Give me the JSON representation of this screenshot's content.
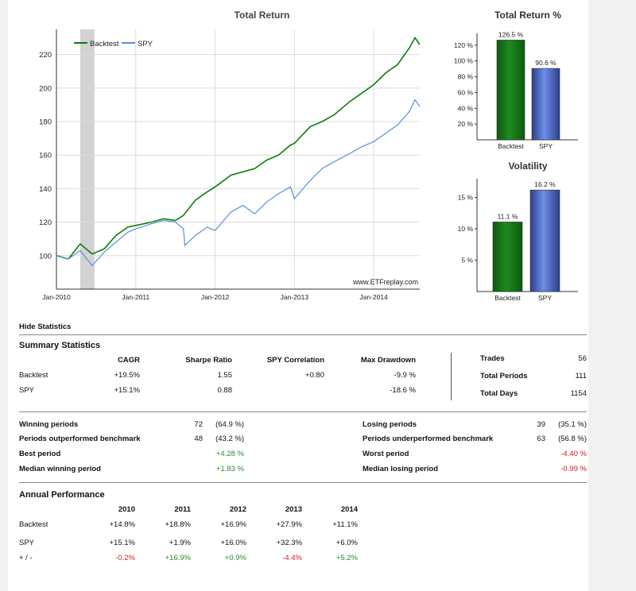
{
  "chart_data": [
    {
      "type": "line",
      "title": "Total Return",
      "x_ticks": [
        "Jan-2010",
        "Jan-2011",
        "Jan-2012",
        "Jan-2013",
        "Jan-2014"
      ],
      "y_ticks": [
        100,
        120,
        140,
        160,
        180,
        200,
        220
      ],
      "ylim": [
        80,
        235
      ],
      "xlim": [
        2010.0,
        2014.58
      ],
      "grid": true,
      "legend": "top-left",
      "watermark": "www.ETFreplay.com",
      "shaded_region": [
        2010.3,
        2010.48
      ],
      "series": [
        {
          "name": "Backtest",
          "color": "#0a7d0a",
          "x": [
            2010.0,
            2010.15,
            2010.3,
            2010.45,
            2010.6,
            2010.75,
            2010.9,
            2011.0,
            2011.2,
            2011.35,
            2011.5,
            2011.6,
            2011.75,
            2011.9,
            2012.0,
            2012.2,
            2012.35,
            2012.5,
            2012.65,
            2012.8,
            2012.95,
            2013.0,
            2013.2,
            2013.35,
            2013.5,
            2013.7,
            2013.85,
            2014.0,
            2014.15,
            2014.3,
            2014.45,
            2014.52,
            2014.58
          ],
          "values": [
            100,
            98,
            107,
            101,
            104,
            112,
            117,
            118,
            120,
            122,
            121,
            124,
            133,
            138,
            141,
            148,
            150,
            152,
            157,
            160,
            166,
            167,
            177,
            180,
            184,
            192,
            197,
            202,
            209,
            214,
            224,
            230,
            226
          ]
        },
        {
          "name": "SPY",
          "color": "#5b8fd6",
          "x": [
            2010.0,
            2010.15,
            2010.3,
            2010.45,
            2010.6,
            2010.75,
            2010.9,
            2011.0,
            2011.2,
            2011.35,
            2011.5,
            2011.6,
            2011.62,
            2011.75,
            2011.9,
            2012.0,
            2012.2,
            2012.35,
            2012.5,
            2012.65,
            2012.8,
            2012.95,
            2013.0,
            2013.2,
            2013.35,
            2013.5,
            2013.7,
            2013.85,
            2014.0,
            2014.15,
            2014.3,
            2014.45,
            2014.52,
            2014.58
          ],
          "values": [
            100,
            98,
            103,
            94,
            102,
            108,
            114,
            116,
            119,
            121,
            120,
            116,
            106,
            112,
            117,
            115,
            126,
            130,
            125,
            132,
            137,
            141,
            134,
            145,
            152,
            156,
            161,
            165,
            168,
            173,
            178,
            186,
            193,
            189
          ]
        }
      ]
    },
    {
      "type": "bar",
      "title": "Total Return %",
      "categories": [
        "Backtest",
        "SPY"
      ],
      "values": [
        126.5,
        90.6
      ],
      "labels": [
        "126.5 %",
        "90.6 %"
      ],
      "colors": [
        "#1e8a1e",
        "#6e8fe8"
      ],
      "y_ticks": [
        "20 %",
        "40 %",
        "60 %",
        "80 %",
        "100 %",
        "120 %"
      ],
      "y_tick_values": [
        20,
        40,
        60,
        80,
        100,
        120
      ],
      "ylim": [
        0,
        135
      ]
    },
    {
      "type": "bar",
      "title": "Volatility",
      "categories": [
        "Backtest",
        "SPY"
      ],
      "values": [
        11.1,
        16.2
      ],
      "labels": [
        "11.1 %",
        "16.2 %"
      ],
      "colors": [
        "#1e8a1e",
        "#6e8fe8"
      ],
      "y_ticks": [
        "5 %",
        "10 %",
        "15 %"
      ],
      "y_tick_values": [
        5,
        10,
        15
      ],
      "ylim": [
        0,
        18
      ]
    }
  ],
  "hide_stats_link": "Hide Statistics",
  "summary": {
    "title": "Summary Statistics",
    "columns": [
      "CAGR",
      "Sharpe Ratio",
      "SPY Correlation",
      "Max Drawdown"
    ],
    "rows": [
      {
        "name": "Backtest",
        "cagr": "+19.5%",
        "sharpe": "1.55",
        "corr": "+0.80",
        "drawdown": "-9.9 %"
      },
      {
        "name": "SPY",
        "cagr": "+15.1%",
        "sharpe": "0.88",
        "corr": "",
        "drawdown": "-18.6 %"
      }
    ],
    "side": [
      {
        "label": "Trades",
        "value": "56"
      },
      {
        "label": "Total Periods",
        "value": "111"
      },
      {
        "label": "Total Days",
        "value": "1154"
      }
    ]
  },
  "periods": {
    "left": [
      {
        "label": "Winning periods",
        "count": "72",
        "pct": "(64.9 %)"
      },
      {
        "label": "Periods outperformed benchmark",
        "count": "48",
        "pct": "(43.2 %)"
      },
      {
        "label": "Best period",
        "count": "",
        "pct": "+4.28 %"
      },
      {
        "label": "Median winning period",
        "count": "",
        "pct": "+1.83 %"
      }
    ],
    "right": [
      {
        "label": "Losing periods",
        "count": "39",
        "pct": "(35.1 %)"
      },
      {
        "label": "Periods underperformed benchmark",
        "count": "63",
        "pct": "(56.8 %)"
      },
      {
        "label": "Worst period",
        "count": "",
        "pct": "-4.40 %"
      },
      {
        "label": "Median losing period",
        "count": "",
        "pct": "-0.99 %"
      }
    ]
  },
  "annual": {
    "title": "Annual Performance",
    "years": [
      "2010",
      "2011",
      "2012",
      "2013",
      "2014"
    ],
    "rows": [
      {
        "label": "Backtest",
        "values": [
          "+14.8%",
          "+18.8%",
          "+16.9%",
          "+27.9%",
          "+11.1%"
        ]
      },
      {
        "label": "SPY",
        "values": [
          "+15.1%",
          "+1.9%",
          "+16.0%",
          "+32.3%",
          "+6.0%"
        ]
      },
      {
        "label": "+ / -",
        "values": [
          "-0.2%",
          "+16.9%",
          "+0.9%",
          "-4.4%",
          "+5.2%"
        ]
      }
    ],
    "diff_colors": {
      "positive": "#2a8a2a",
      "negative": "#d0202a"
    }
  }
}
